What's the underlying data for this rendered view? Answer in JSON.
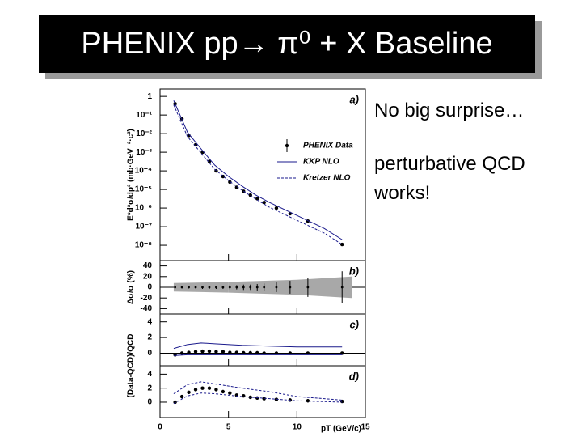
{
  "title": "PHENIX pp→ π⁰ + X Baseline",
  "bullets": [
    "No big surprise…",
    "perturbative QCD works!"
  ],
  "chart_data": [
    {
      "type": "scatter",
      "annotation": "a)",
      "ylabel": "E*d³σ/dp³ (mb·GeV⁻²·c³)",
      "log_y": true,
      "ylim": [
        1.5e-09,
        2.5
      ],
      "yticks": [
        1,
        {
          "value": 0.1,
          "label": "10⁻¹"
        },
        {
          "value": 0.01,
          "label": "10⁻²"
        },
        {
          "value": 0.001,
          "label": "10⁻³"
        },
        {
          "value": 0.0001,
          "label": "10⁻⁴"
        },
        {
          "value": 1e-05,
          "label": "10⁻⁵"
        },
        {
          "value": 1e-06,
          "label": "10⁻⁶"
        },
        {
          "value": 1e-07,
          "label": "10⁻⁷"
        },
        {
          "value": 1e-08,
          "label": "10⁻⁸"
        }
      ],
      "legend": "right",
      "series": [
        {
          "name": "PHENIX Data",
          "style": "points",
          "color": "#000000",
          "x": [
            1.1,
            1.6,
            2.1,
            2.6,
            3.1,
            3.6,
            4.1,
            4.6,
            5.1,
            5.6,
            6.1,
            6.6,
            7.1,
            7.6,
            8.5,
            9.5,
            10.8,
            13.3
          ],
          "values": [
            0.4,
            0.063,
            0.0079,
            0.0025,
            0.001,
            0.00032,
            0.0001,
            5e-05,
            2.5e-05,
            1.3e-05,
            8e-06,
            5e-06,
            3.2e-06,
            2e-06,
            1e-06,
            5e-07,
            2e-07,
            1.1e-08
          ]
        },
        {
          "name": "KKP NLO",
          "style": "solid",
          "color": "#1a1a8c",
          "x": [
            1,
            2,
            3,
            4,
            5,
            6,
            7,
            8,
            10,
            12,
            13.3
          ],
          "values": [
            0.6,
            0.012,
            0.0015,
            0.0002,
            5e-05,
            1.5e-05,
            5e-06,
            2e-06,
            4e-07,
            8e-08,
            2e-08
          ]
        },
        {
          "name": "Kretzer NLO",
          "style": "dashed",
          "color": "#1a1a8c",
          "x": [
            1,
            2,
            3,
            4,
            5,
            6,
            7,
            8,
            10,
            12,
            13.3
          ],
          "values": [
            0.35,
            0.007,
            0.0009,
            0.00012,
            3e-05,
            9e-06,
            3e-06,
            1.1e-06,
            2.2e-07,
            4.5e-08,
            1.1e-08
          ]
        }
      ]
    },
    {
      "type": "scatter",
      "annotation": "b)",
      "ylabel": "Δσ/σ (%)",
      "ylim": [
        -50,
        50
      ],
      "yticks": [
        -40,
        -20,
        0,
        20,
        40
      ],
      "zero_line": true,
      "band": {
        "color": "#a8a8a8",
        "x": [
          1,
          5,
          10,
          14
        ],
        "upper": [
          8,
          10,
          14,
          20
        ],
        "lower": [
          -8,
          -10,
          -14,
          -20
        ]
      },
      "series": [
        {
          "style": "points",
          "color": "#000000",
          "x": [
            1.1,
            1.6,
            2.1,
            2.6,
            3.1,
            3.6,
            4.1,
            4.6,
            5.1,
            5.6,
            6.1,
            6.6,
            7.1,
            7.6,
            8.5,
            9.5,
            10.8,
            13.3
          ],
          "values": [
            0,
            0,
            0,
            0,
            0,
            0,
            0,
            0,
            0,
            0,
            0,
            0,
            0,
            0,
            0,
            0,
            0,
            0
          ],
          "errors": [
            2,
            2,
            2,
            2,
            3,
            3,
            3,
            3,
            4,
            4,
            5,
            5,
            6,
            7,
            9,
            12,
            18,
            30
          ]
        }
      ]
    },
    {
      "type": "scatter",
      "annotation": "c)",
      "ylabel": "(Data-QCD)/QCD",
      "ylim": [
        -1.6,
        5
      ],
      "yticks": [
        0,
        2,
        4
      ],
      "zero_line": true,
      "series": [
        {
          "style": "points",
          "color": "#000000",
          "x": [
            1.1,
            1.6,
            2.1,
            2.6,
            3.1,
            3.6,
            4.1,
            4.6,
            5.1,
            5.6,
            6.1,
            6.6,
            7.1,
            7.6,
            8.5,
            9.5,
            10.8,
            13.3
          ],
          "values": [
            -0.2,
            0,
            0.1,
            0.2,
            0.25,
            0.25,
            0.2,
            0.2,
            0.1,
            0.1,
            0.05,
            0.05,
            0.05,
            0,
            0,
            0,
            0,
            0
          ]
        },
        {
          "style": "solid",
          "color": "#1a1a8c",
          "x": [
            1,
            2,
            3,
            4,
            6,
            8,
            10,
            13.3
          ],
          "values": [
            0.6,
            1.1,
            1.3,
            1.2,
            1.0,
            0.9,
            0.8,
            0.8
          ]
        },
        {
          "style": "solid",
          "color": "#1a1a8c",
          "x": [
            1,
            2,
            3,
            4,
            6,
            8,
            10,
            13.3
          ],
          "values": [
            -0.3,
            -0.2,
            -0.2,
            -0.2,
            -0.2,
            -0.2,
            -0.2,
            -0.2
          ]
        }
      ]
    },
    {
      "type": "scatter",
      "annotation": "d)",
      "ylim": [
        -2.2,
        5.2
      ],
      "yticks": [
        0,
        2,
        4
      ],
      "xlim": [
        0,
        15
      ],
      "xticks": [
        0,
        5,
        10,
        15
      ],
      "xlabel": "pT (GeV/c)",
      "series": [
        {
          "style": "points",
          "color": "#000000",
          "x": [
            1.1,
            1.6,
            2.1,
            2.6,
            3.1,
            3.6,
            4.1,
            4.6,
            5.1,
            5.6,
            6.1,
            6.6,
            7.1,
            7.6,
            8.5,
            9.5,
            10.8,
            13.3
          ],
          "values": [
            0,
            0.8,
            1.4,
            1.8,
            2.0,
            2.0,
            1.8,
            1.5,
            1.3,
            1.0,
            0.9,
            0.7,
            0.6,
            0.5,
            0.4,
            0.3,
            0.2,
            0.1
          ]
        },
        {
          "style": "dashed",
          "color": "#1a1a8c",
          "x": [
            1,
            2,
            3,
            4,
            6,
            8,
            10,
            13.3
          ],
          "values": [
            1.2,
            2.5,
            2.9,
            2.6,
            2.0,
            1.5,
            0.8,
            0.3
          ]
        },
        {
          "style": "dashed",
          "color": "#1a1a8c",
          "x": [
            1,
            2,
            3,
            4,
            6,
            8,
            10,
            13.3
          ],
          "values": [
            -0.2,
            0.9,
            1.3,
            1.2,
            0.8,
            0.5,
            0.2,
            0
          ]
        }
      ]
    }
  ]
}
